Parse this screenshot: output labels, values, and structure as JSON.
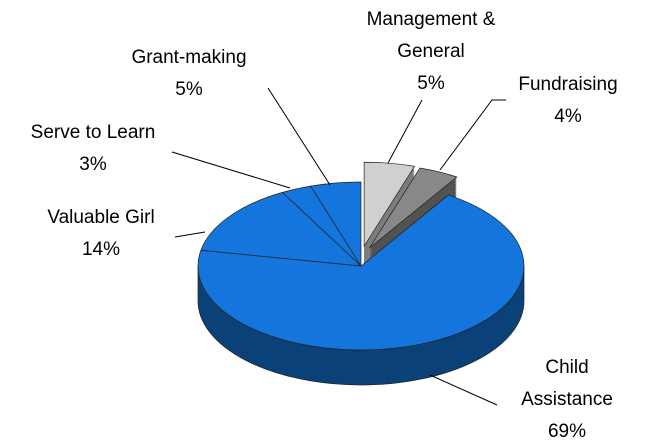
{
  "chart_data": {
    "type": "pie",
    "categories": [
      "Management & General",
      "Fundraising",
      "Child Assistance",
      "Valuable Girl",
      "Serve to Learn",
      "Grant-making"
    ],
    "values": [
      5,
      4,
      69,
      14,
      3,
      5
    ],
    "value_labels": [
      "5%",
      "4%",
      "69%",
      "14%",
      "3%",
      "5%"
    ],
    "colors": [
      "#d0d0d0",
      "#888888",
      "#1476dc",
      "#1476dc",
      "#1476dc",
      "#1476dc"
    ]
  }
}
